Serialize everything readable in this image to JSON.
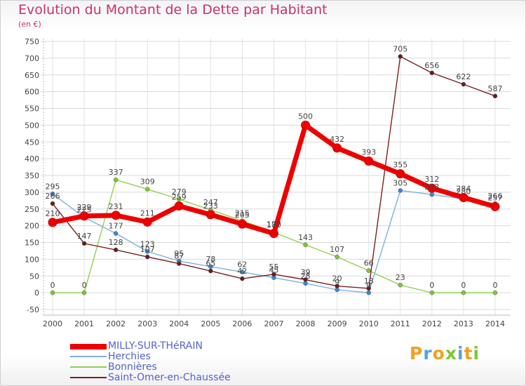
{
  "chart_data": {
    "type": "line",
    "title": "Evolution du Montant de la Dette par Habitant",
    "ylabel": "(en €)",
    "xlabel": "",
    "ylim": [
      -50,
      750
    ],
    "yticks": [
      -50,
      0,
      50,
      100,
      150,
      200,
      250,
      300,
      350,
      400,
      450,
      500,
      550,
      600,
      650,
      700,
      750
    ],
    "categories": [
      "2000",
      "2001",
      "2002",
      "2003",
      "2004",
      "2005",
      "2006",
      "2007",
      "2008",
      "2009",
      "2010",
      "2011",
      "2012",
      "2013",
      "2014"
    ],
    "series": [
      {
        "name": "Bonnières",
        "color": "#92d050",
        "marker": "#7cc832",
        "values": [
          0,
          0,
          337,
          309,
          279,
          247,
          215,
          180,
          143,
          107,
          66,
          23,
          0,
          0,
          0
        ]
      },
      {
        "name": "Herchies",
        "color": "#7eb1dc",
        "marker": "#3a86d0",
        "values": [
          295,
          225,
          177,
          123,
          95,
          78,
          62,
          45,
          28,
          9,
          0,
          305,
          293,
          280,
          266
        ]
      },
      {
        "name": "Saint-Omer-en-Chaussée",
        "color": "#7a1f22",
        "marker": "#6a1a1d",
        "values": [
          266,
          147,
          128,
          107,
          87,
          65,
          42,
          55,
          39,
          20,
          13,
          705,
          656,
          622,
          587
        ]
      },
      {
        "name": "MILLY-SUR-THéRAIN",
        "color": "#ee0000",
        "marker": "#ee0000",
        "values": [
          210,
          229,
          231,
          211,
          259,
          233,
          205,
          177,
          500,
          432,
          393,
          355,
          312,
          284,
          257
        ]
      }
    ]
  },
  "legend": {
    "items": [
      {
        "label": "MILLY-SUR-THéRAIN",
        "color": "#ee0000"
      },
      {
        "label": "Herchies",
        "color": "#7eb1dc"
      },
      {
        "label": "Bonnières",
        "color": "#92d050"
      },
      {
        "label": "Saint-Omer-en-Chaussée",
        "color": "#7a1f22"
      }
    ]
  },
  "logo": {
    "text": "Proxiti"
  }
}
